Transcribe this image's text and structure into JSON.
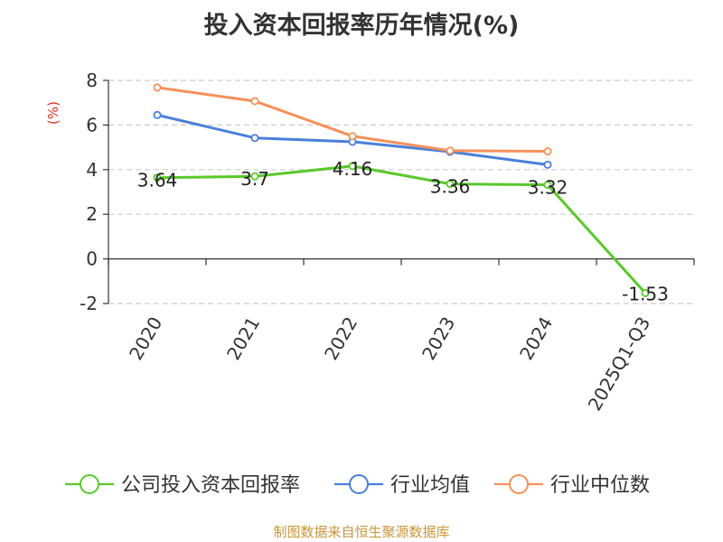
{
  "title": "投入资本回报率历年情况(%)",
  "footer": "制图数据来自恒生聚源数据库",
  "chart_data": {
    "type": "line",
    "title": "投入资本回报率历年情况(%)",
    "ylabel": "(%)",
    "categories": [
      "2020",
      "2021",
      "2022",
      "2023",
      "2024",
      "2025Q1-Q3"
    ],
    "yticks": [
      "8",
      "6",
      "4",
      "2",
      "0",
      "-2"
    ],
    "ylim": [
      -2,
      8
    ],
    "grid": "horizontal-dashed",
    "legend_position": "bottom",
    "series": [
      {
        "name": "公司投入资本回报率",
        "color": "#5ac82a",
        "values": [
          3.64,
          3.7,
          4.16,
          3.36,
          3.32,
          -1.53
        ],
        "labels": [
          "3.64",
          "3.7",
          "4.16",
          "3.36",
          "3.32",
          "-1.53"
        ]
      },
      {
        "name": "行业均值",
        "color": "#4a7fdc",
        "values": [
          6.45,
          5.42,
          5.25,
          4.8,
          4.22,
          null
        ]
      },
      {
        "name": "行业中位数",
        "color": "#f5915a",
        "values": [
          7.68,
          7.07,
          5.5,
          4.85,
          4.82,
          null
        ]
      }
    ]
  }
}
